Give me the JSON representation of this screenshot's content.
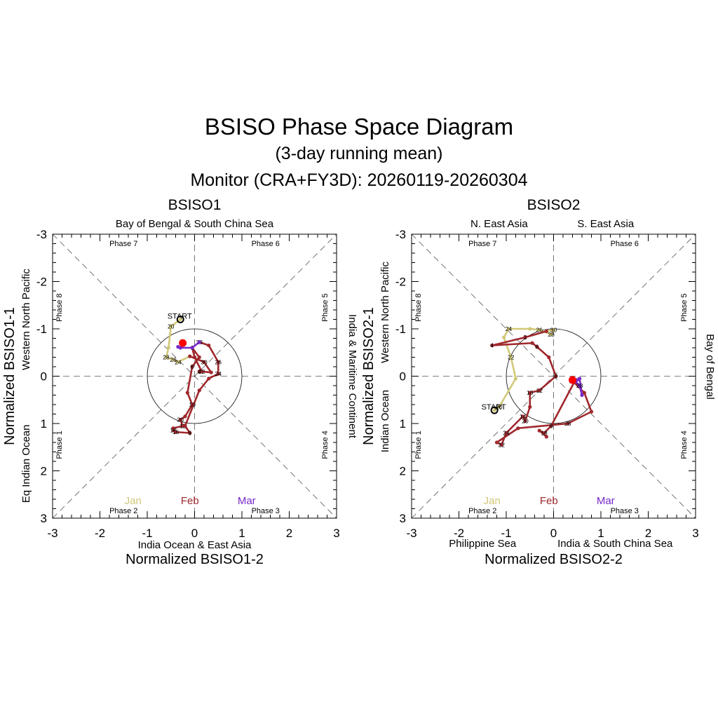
{
  "title": "BSISO Phase Space Diagram",
  "subtitle": "(3-day running mean)",
  "monitor": "Monitor (CRA+FY3D): 20260119-20260304",
  "colors": {
    "jan": "#d2c878",
    "feb": "#a0282d",
    "mar": "#7828c8",
    "current": "#ff0000"
  },
  "chart_data": [
    {
      "type": "line",
      "title": "BSISO1",
      "xlabel": "Normalized BSISO1-2",
      "ylabel": "Normalized BSISO1-1",
      "xlim": [
        -3,
        3
      ],
      "ylim": [
        3,
        -3
      ],
      "ticks": [
        "-3",
        "-2",
        "-1",
        "0",
        "1",
        "2",
        "3"
      ],
      "region_labels": {
        "top": "Bay of Bengal & South China Sea",
        "bottom": "India Ocean & East Asia",
        "left_outer": "Eq Indian Ocean",
        "left_inner": "Western North Pacific",
        "right": "India & Maritime Continent"
      },
      "phases": [
        "Phase 1",
        "Phase 2",
        "Phase 3",
        "Phase 4",
        "Phase 5",
        "Phase 6",
        "Phase 7",
        "Phase 8"
      ],
      "months": [
        "Jan",
        "Feb",
        "Mar"
      ],
      "start_label": "START",
      "series": [
        {
          "name": "Jan",
          "points": [
            [
              -0.3,
              -1.2,
              ""
            ],
            [
              -0.5,
              -1.05,
              "20"
            ],
            [
              -0.55,
              -0.6,
              ""
            ],
            [
              -0.6,
              -0.4,
              "28"
            ],
            [
              -0.45,
              -0.35,
              "26"
            ],
            [
              -0.35,
              -0.3,
              "24"
            ],
            [
              -0.1,
              -0.42,
              ""
            ]
          ]
        },
        {
          "name": "Feb",
          "points": [
            [
              -0.1,
              -0.42,
              ""
            ],
            [
              0.2,
              -0.3,
              "30"
            ],
            [
              0.35,
              -0.08,
              ""
            ],
            [
              0.1,
              -0.1,
              "4"
            ],
            [
              0.15,
              -0.1,
              "22"
            ],
            [
              0.0,
              -0.4,
              ""
            ],
            [
              -0.05,
              -0.6,
              "6"
            ],
            [
              0.1,
              -0.4,
              ""
            ],
            [
              -0.05,
              -0.2,
              "8"
            ],
            [
              -0.15,
              0.35,
              ""
            ],
            [
              -0.05,
              0.6,
              "10"
            ],
            [
              -0.2,
              0.85,
              ""
            ],
            [
              -0.3,
              0.92,
              "20"
            ],
            [
              -0.25,
              1.05,
              "12"
            ],
            [
              -0.45,
              1.1,
              ""
            ],
            [
              -0.45,
              1.14,
              "18"
            ],
            [
              -0.4,
              1.18,
              "16"
            ],
            [
              -0.1,
              1.2,
              "8"
            ],
            [
              -0.2,
              1.05,
              ""
            ],
            [
              0.1,
              0.3,
              ""
            ],
            [
              0.3,
              0.05,
              ""
            ],
            [
              0.5,
              -0.05,
              "24"
            ],
            [
              0.5,
              -0.3,
              "26"
            ],
            [
              0.3,
              -0.65,
              ""
            ],
            [
              0.1,
              -0.72,
              "28"
            ]
          ]
        },
        {
          "name": "Mar",
          "points": [
            [
              0.1,
              -0.72,
              ""
            ],
            [
              -0.05,
              -0.6,
              ""
            ],
            [
              -0.3,
              -0.6,
              ""
            ],
            [
              -0.35,
              -0.62,
              ""
            ]
          ]
        }
      ],
      "current": [
        -0.25,
        -0.7
      ]
    },
    {
      "type": "line",
      "title": "BSISO2",
      "xlabel": "Normalized BSISO2-2",
      "ylabel": "Normalized BSISO2-1",
      "xlim": [
        -3,
        3
      ],
      "ylim": [
        3,
        -3
      ],
      "ticks": [
        "-3",
        "-2",
        "-1",
        "0",
        "1",
        "2",
        "3"
      ],
      "region_labels": {
        "top_left": "N. East Asia",
        "top_right": "S. East Asia",
        "bottom_left": "Philippine Sea",
        "bottom_right": "India & South China Sea",
        "left_outer": "Indian Ocean",
        "left_inner": "Western North Pacific",
        "right": "Bay of Bengal"
      },
      "phases": [
        "Phase 1",
        "Phase 2",
        "Phase 3",
        "Phase 4",
        "Phase 5",
        "Phase 6",
        "Phase 7",
        "Phase 8"
      ],
      "months": [
        "Jan",
        "Feb",
        "Mar"
      ],
      "start_label": "START",
      "series": [
        {
          "name": "Jan",
          "points": [
            [
              -1.25,
              0.72,
              ""
            ],
            [
              -1.15,
              0.65,
              "20"
            ],
            [
              -0.8,
              0.05,
              ""
            ],
            [
              -0.9,
              -0.4,
              "22"
            ],
            [
              -1.05,
              -0.82,
              ""
            ],
            [
              -0.95,
              -1.0,
              "24"
            ],
            [
              -0.5,
              -1.0,
              ""
            ],
            [
              -0.3,
              -0.98,
              "26"
            ],
            [
              -0.05,
              -0.88,
              "28"
            ],
            [
              0.0,
              -0.98,
              "30"
            ],
            [
              -0.15,
              -0.95,
              ""
            ]
          ]
        },
        {
          "name": "Feb",
          "points": [
            [
              -0.15,
              -0.95,
              ""
            ],
            [
              -0.6,
              -0.82,
              "2"
            ],
            [
              -1.3,
              -0.65,
              "4"
            ],
            [
              -0.45,
              -0.7,
              ""
            ],
            [
              -0.35,
              -0.62,
              "6"
            ],
            [
              -0.1,
              -0.4,
              ""
            ],
            [
              0.05,
              0.0,
              "8"
            ],
            [
              -0.3,
              0.3,
              "12"
            ],
            [
              -0.5,
              0.35,
              "10"
            ],
            [
              -0.5,
              0.65,
              ""
            ],
            [
              -0.6,
              0.95,
              "20"
            ],
            [
              -0.65,
              0.85,
              "14"
            ],
            [
              -1.0,
              1.2,
              "24"
            ],
            [
              -1.1,
              1.45,
              "22"
            ],
            [
              -1.2,
              1.4,
              ""
            ],
            [
              -0.75,
              1.1,
              ""
            ],
            [
              0.3,
              1.0,
              "26"
            ],
            [
              0.8,
              0.75,
              ""
            ],
            [
              0.65,
              0.35,
              ""
            ],
            [
              0.4,
              0.1,
              "28"
            ],
            [
              0.45,
              0.1,
              ""
            ],
            [
              -0.05,
              1.05,
              "8"
            ],
            [
              -0.2,
              1.2,
              "18"
            ],
            [
              -0.3,
              1.15,
              ""
            ],
            [
              -0.15,
              1.28,
              ""
            ]
          ]
        },
        {
          "name": "Mar",
          "points": [
            [
              0.45,
              0.1,
              ""
            ],
            [
              0.55,
              0.2,
              "28"
            ],
            [
              0.6,
              0.4,
              ""
            ],
            [
              0.55,
              0.05,
              ""
            ],
            [
              0.5,
              0.08,
              ""
            ]
          ]
        }
      ],
      "current": [
        0.4,
        0.08
      ]
    }
  ]
}
